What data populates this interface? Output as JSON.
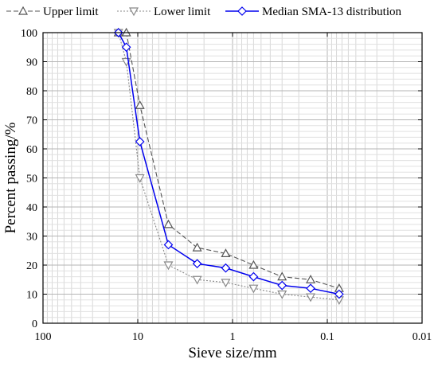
{
  "chart_data": {
    "type": "line",
    "x_scale": "log",
    "x_reversed": true,
    "xlabel": "Sieve size/mm",
    "ylabel": "Percent passing/%",
    "xlim": [
      100,
      0.01
    ],
    "ylim": [
      0,
      100
    ],
    "grid": true,
    "legend_position": "top",
    "x_ticks": [
      100,
      10,
      1,
      0.1,
      0.01
    ],
    "x_tick_labels": [
      "100",
      "10",
      "1",
      "0.1",
      "0.01"
    ],
    "y_ticks": [
      0,
      10,
      20,
      30,
      40,
      50,
      60,
      70,
      80,
      90,
      100
    ],
    "y_tick_labels": [
      "0",
      "10",
      "20",
      "30",
      "40",
      "50",
      "60",
      "70",
      "80",
      "90",
      "100"
    ],
    "x": [
      16,
      13.2,
      9.5,
      4.75,
      2.36,
      1.18,
      0.6,
      0.3,
      0.15,
      0.075
    ],
    "series": [
      {
        "name": "Upper limit",
        "values": [
          100,
          100,
          75,
          34,
          26,
          24,
          20,
          16,
          15,
          12
        ],
        "color": "#555555",
        "line_style": "dashed",
        "marker": "triangle-up"
      },
      {
        "name": "Lower limit",
        "values": [
          100,
          90,
          50,
          20,
          15,
          14,
          12,
          10,
          9,
          8
        ],
        "color": "#888888",
        "line_style": "dotted",
        "marker": "triangle-down"
      },
      {
        "name": "Median SMA-13 distribution",
        "values": [
          100,
          95,
          62.5,
          27,
          20.5,
          19,
          16,
          13,
          12,
          10
        ],
        "color": "#0000ee",
        "line_style": "solid",
        "marker": "diamond"
      }
    ]
  }
}
